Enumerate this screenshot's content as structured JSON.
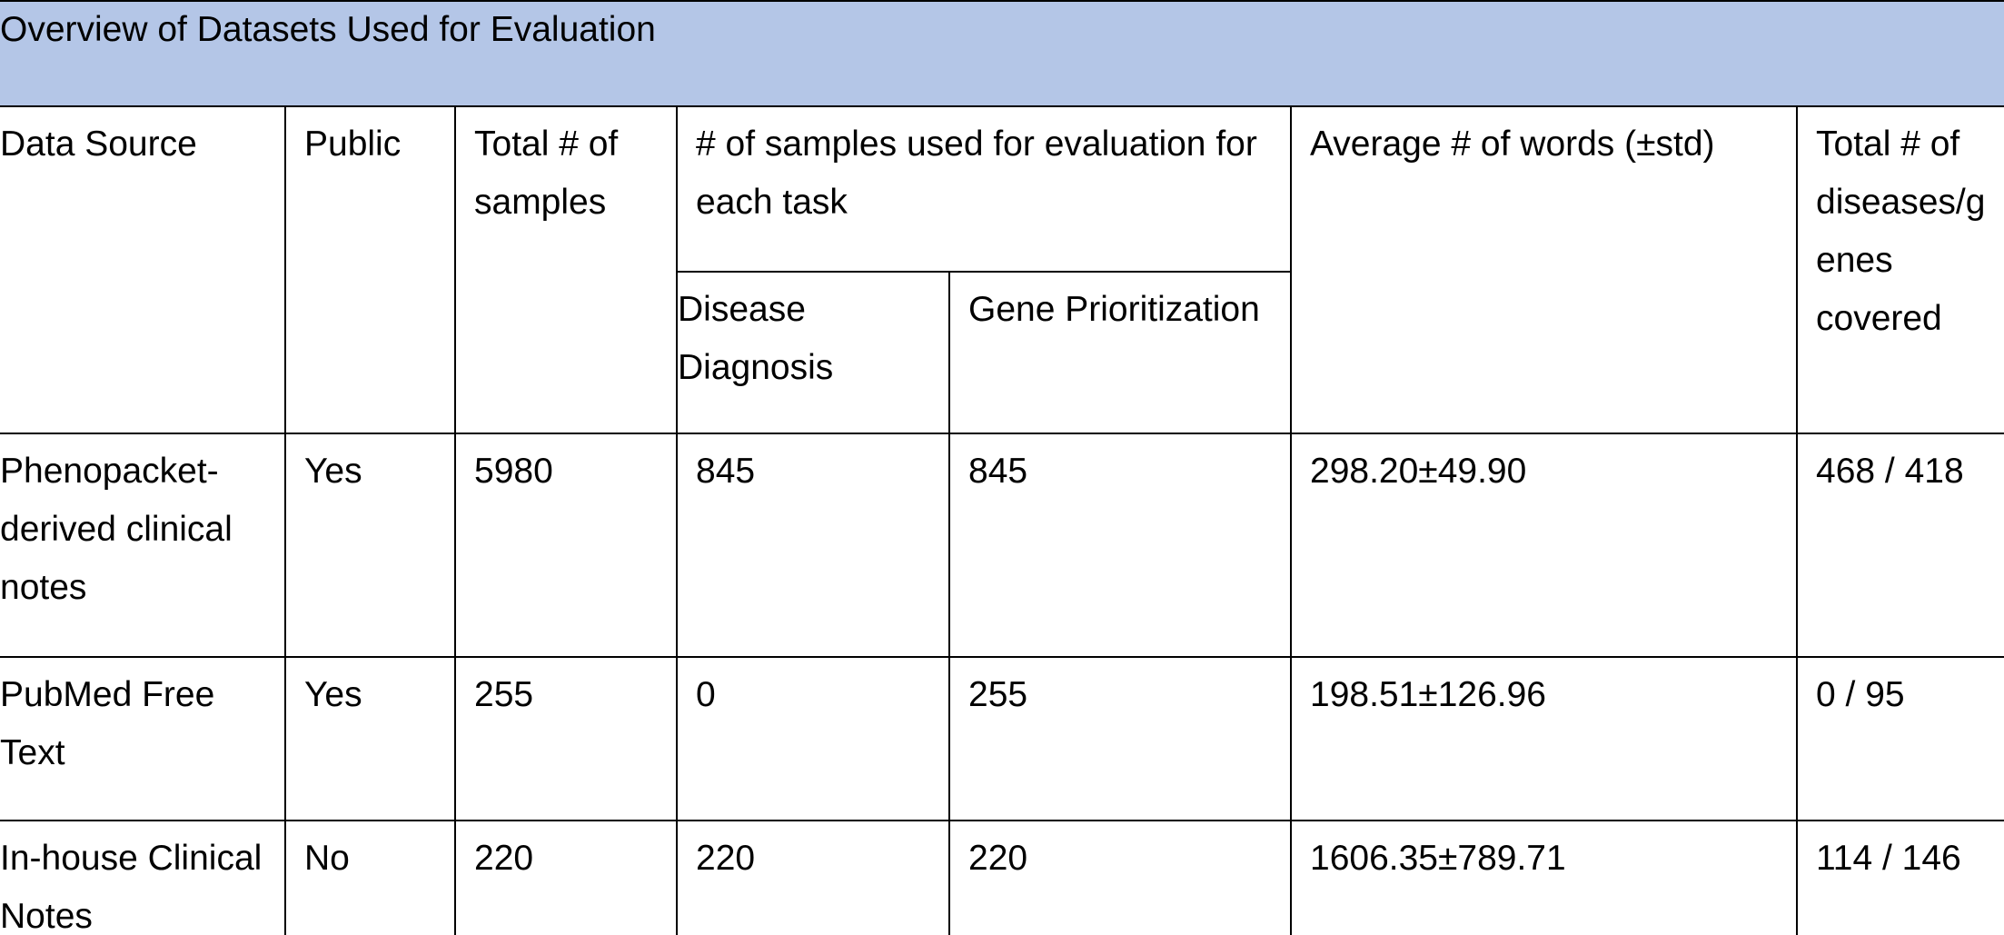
{
  "caption": "Overview of Datasets Used for Evaluation",
  "headers": {
    "data_source": "Data Source",
    "public": "Public",
    "total_samples": "Total # of samples",
    "samples_per_task": "# of samples used for evaluation for each task",
    "disease_diagnosis": "Disease Diagnosis",
    "gene_prioritization": "Gene Prioritization",
    "avg_words": "Average # of words (±std)",
    "diseases_genes": "Total # of diseases/g enes covered"
  },
  "rows": [
    {
      "data_source": "Phenopacket-derived clinical notes",
      "public": "Yes",
      "total_samples": "5980",
      "disease_diagnosis": "845",
      "gene_prioritization": "845",
      "avg_words": "298.20±49.90",
      "diseases_genes": "468 / 418"
    },
    {
      "data_source": "PubMed Free Text",
      "public": "Yes",
      "total_samples": "255",
      "disease_diagnosis": "0",
      "gene_prioritization": "255",
      "avg_words": "198.51±126.96",
      "diseases_genes": "0 / 95"
    },
    {
      "data_source": "In-house Clinical Notes",
      "public": "No",
      "total_samples": "220",
      "disease_diagnosis": "220",
      "gene_prioritization": "220",
      "avg_words": "1606.35±789.71",
      "diseases_genes": "114 / 146"
    }
  ]
}
